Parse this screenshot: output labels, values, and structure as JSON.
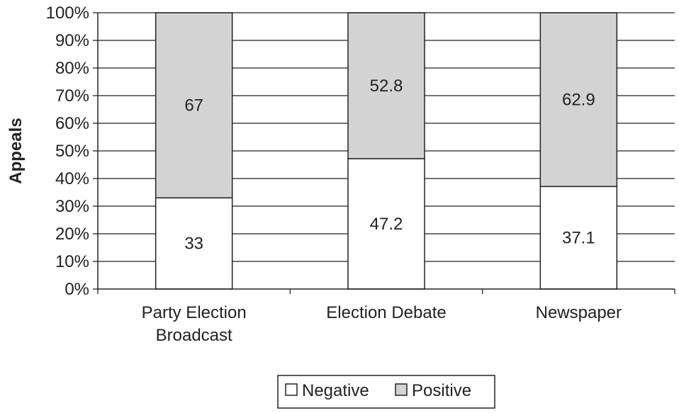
{
  "chart_data": {
    "type": "bar",
    "stacked": true,
    "categories": [
      [
        "Party Election",
        "Broadcast"
      ],
      [
        "Election Debate"
      ],
      [
        "Newspaper"
      ]
    ],
    "series": [
      {
        "name": "Negative",
        "values": [
          33,
          47.2,
          37.1
        ],
        "data_labels": [
          "33",
          "47.2",
          "37.1"
        ],
        "color": "#ffffff"
      },
      {
        "name": "Positive",
        "values": [
          67,
          52.8,
          62.9
        ],
        "data_labels": [
          "67",
          "52.8",
          "62.9"
        ],
        "color": "#d3d3d3"
      }
    ],
    "ylabel": "Appeals",
    "ylim": [
      0,
      100
    ],
    "yticks": [
      "0%",
      "10%",
      "20%",
      "30%",
      "40%",
      "50%",
      "60%",
      "70%",
      "80%",
      "90%",
      "100%"
    ],
    "grid": true,
    "legend_position": "bottom-center"
  }
}
